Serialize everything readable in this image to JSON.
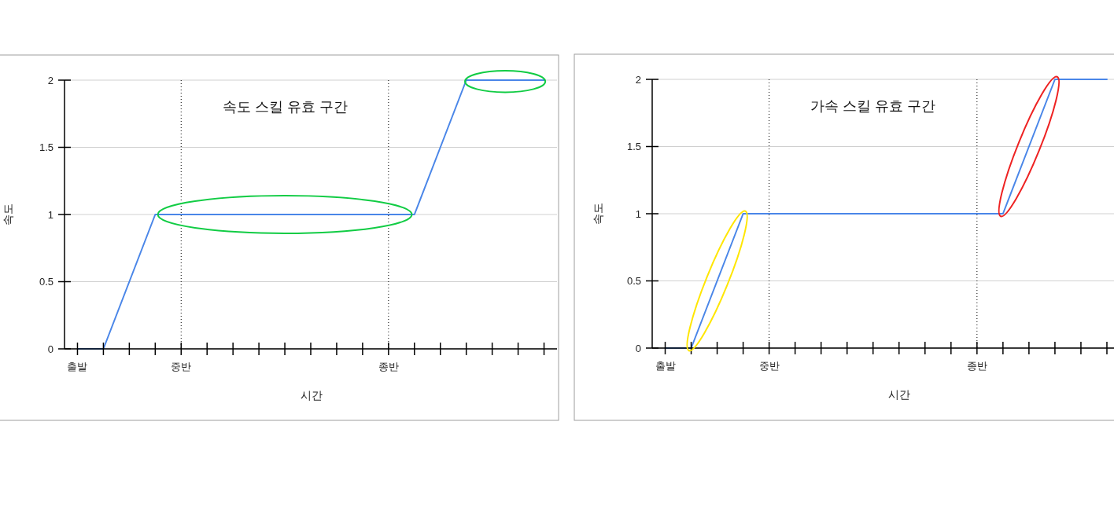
{
  "chart_data": [
    {
      "type": "line",
      "xlabel": "시간",
      "ylabel": "속도",
      "annotations": [
        "속도 스킬 유효 구간"
      ],
      "categories": [
        "출발",
        null,
        null,
        null,
        "중반",
        null,
        null,
        null,
        null,
        null,
        null,
        null,
        "종반",
        null,
        null,
        null,
        null,
        null,
        null
      ],
      "series": [
        {
          "color": "#4a86e8",
          "values": [
            0,
            0,
            0.5,
            1,
            1,
            1,
            1,
            1,
            1,
            1,
            1,
            1,
            1,
            1,
            1.5,
            2,
            2,
            2,
            2
          ]
        }
      ],
      "ylim": [
        0,
        2
      ],
      "yticks": [
        0,
        0.5,
        1,
        1.5,
        2
      ],
      "grid": "y",
      "ref_lines": [
        {
          "axis": "x",
          "value": "중반",
          "color": "#000000",
          "line_style": "dotted"
        },
        {
          "axis": "x",
          "value": "종반",
          "color": "#000000",
          "line_style": "dotted"
        }
      ]
    },
    {
      "type": "line",
      "xlabel": "시간",
      "ylabel": "속도",
      "annotations": [
        "가속 스킬 유효 구간"
      ],
      "categories": [
        "출발",
        null,
        null,
        null,
        "중반",
        null,
        null,
        null,
        null,
        null,
        null,
        null,
        "종반",
        null,
        null,
        null,
        null,
        null
      ],
      "series": [
        {
          "color": "#4a86e8",
          "values": [
            0,
            0,
            0.5,
            1,
            1,
            1,
            1,
            1,
            1,
            1,
            1,
            1,
            1,
            1,
            1.5,
            2,
            2,
            2
          ]
        }
      ],
      "ylim": [
        0,
        2
      ],
      "yticks": [
        0,
        0.5,
        1,
        1.5,
        2
      ],
      "grid": "y",
      "ref_lines": [
        {
          "axis": "x",
          "value": "중반",
          "color": "#000000",
          "line_style": "dotted"
        },
        {
          "axis": "x",
          "value": "종반",
          "color": "#000000",
          "line_style": "dotted"
        }
      ]
    }
  ]
}
